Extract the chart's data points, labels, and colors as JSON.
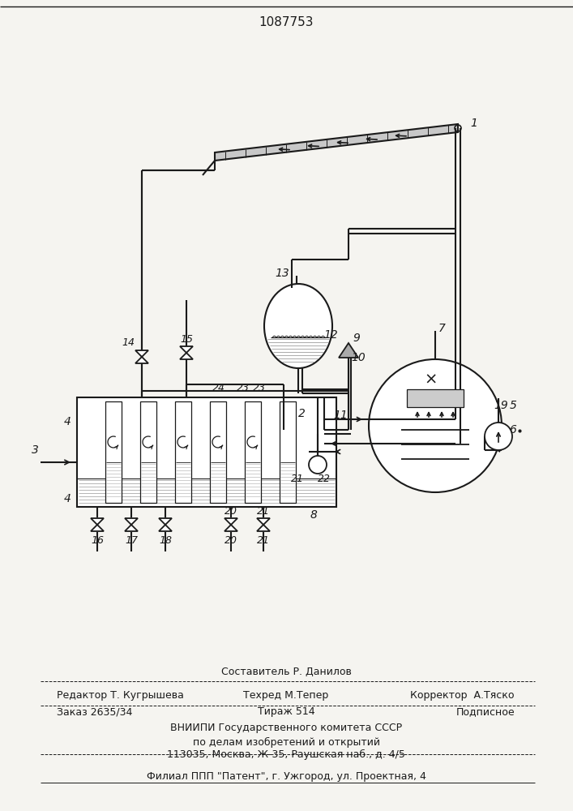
{
  "title": "1087753",
  "bg_color": "#f5f4f0",
  "line_color": "#1a1a1a",
  "text_color": "#1a1a1a",
  "footer": {
    "line1": "Составитель Р. Данилов",
    "line2_left": "Редактор Т. Кугрышева",
    "line2_center": "Техред М.Тепер",
    "line2_right": "Корректор  А.Тяско",
    "line3_left": "Заказ 2635/34",
    "line3_center": "Тираж 514",
    "line3_right": "Подписное",
    "line4": "ВНИИПИ Государственного комитета СССР",
    "line5": "по делам изобретений и открытий",
    "line6": "113035, Москва, Ж-35, Раушская наб., д. 4/5",
    "line7": "Филиал ППП \"Патент\", г. Ужгород, ул. Проектная, 4"
  }
}
